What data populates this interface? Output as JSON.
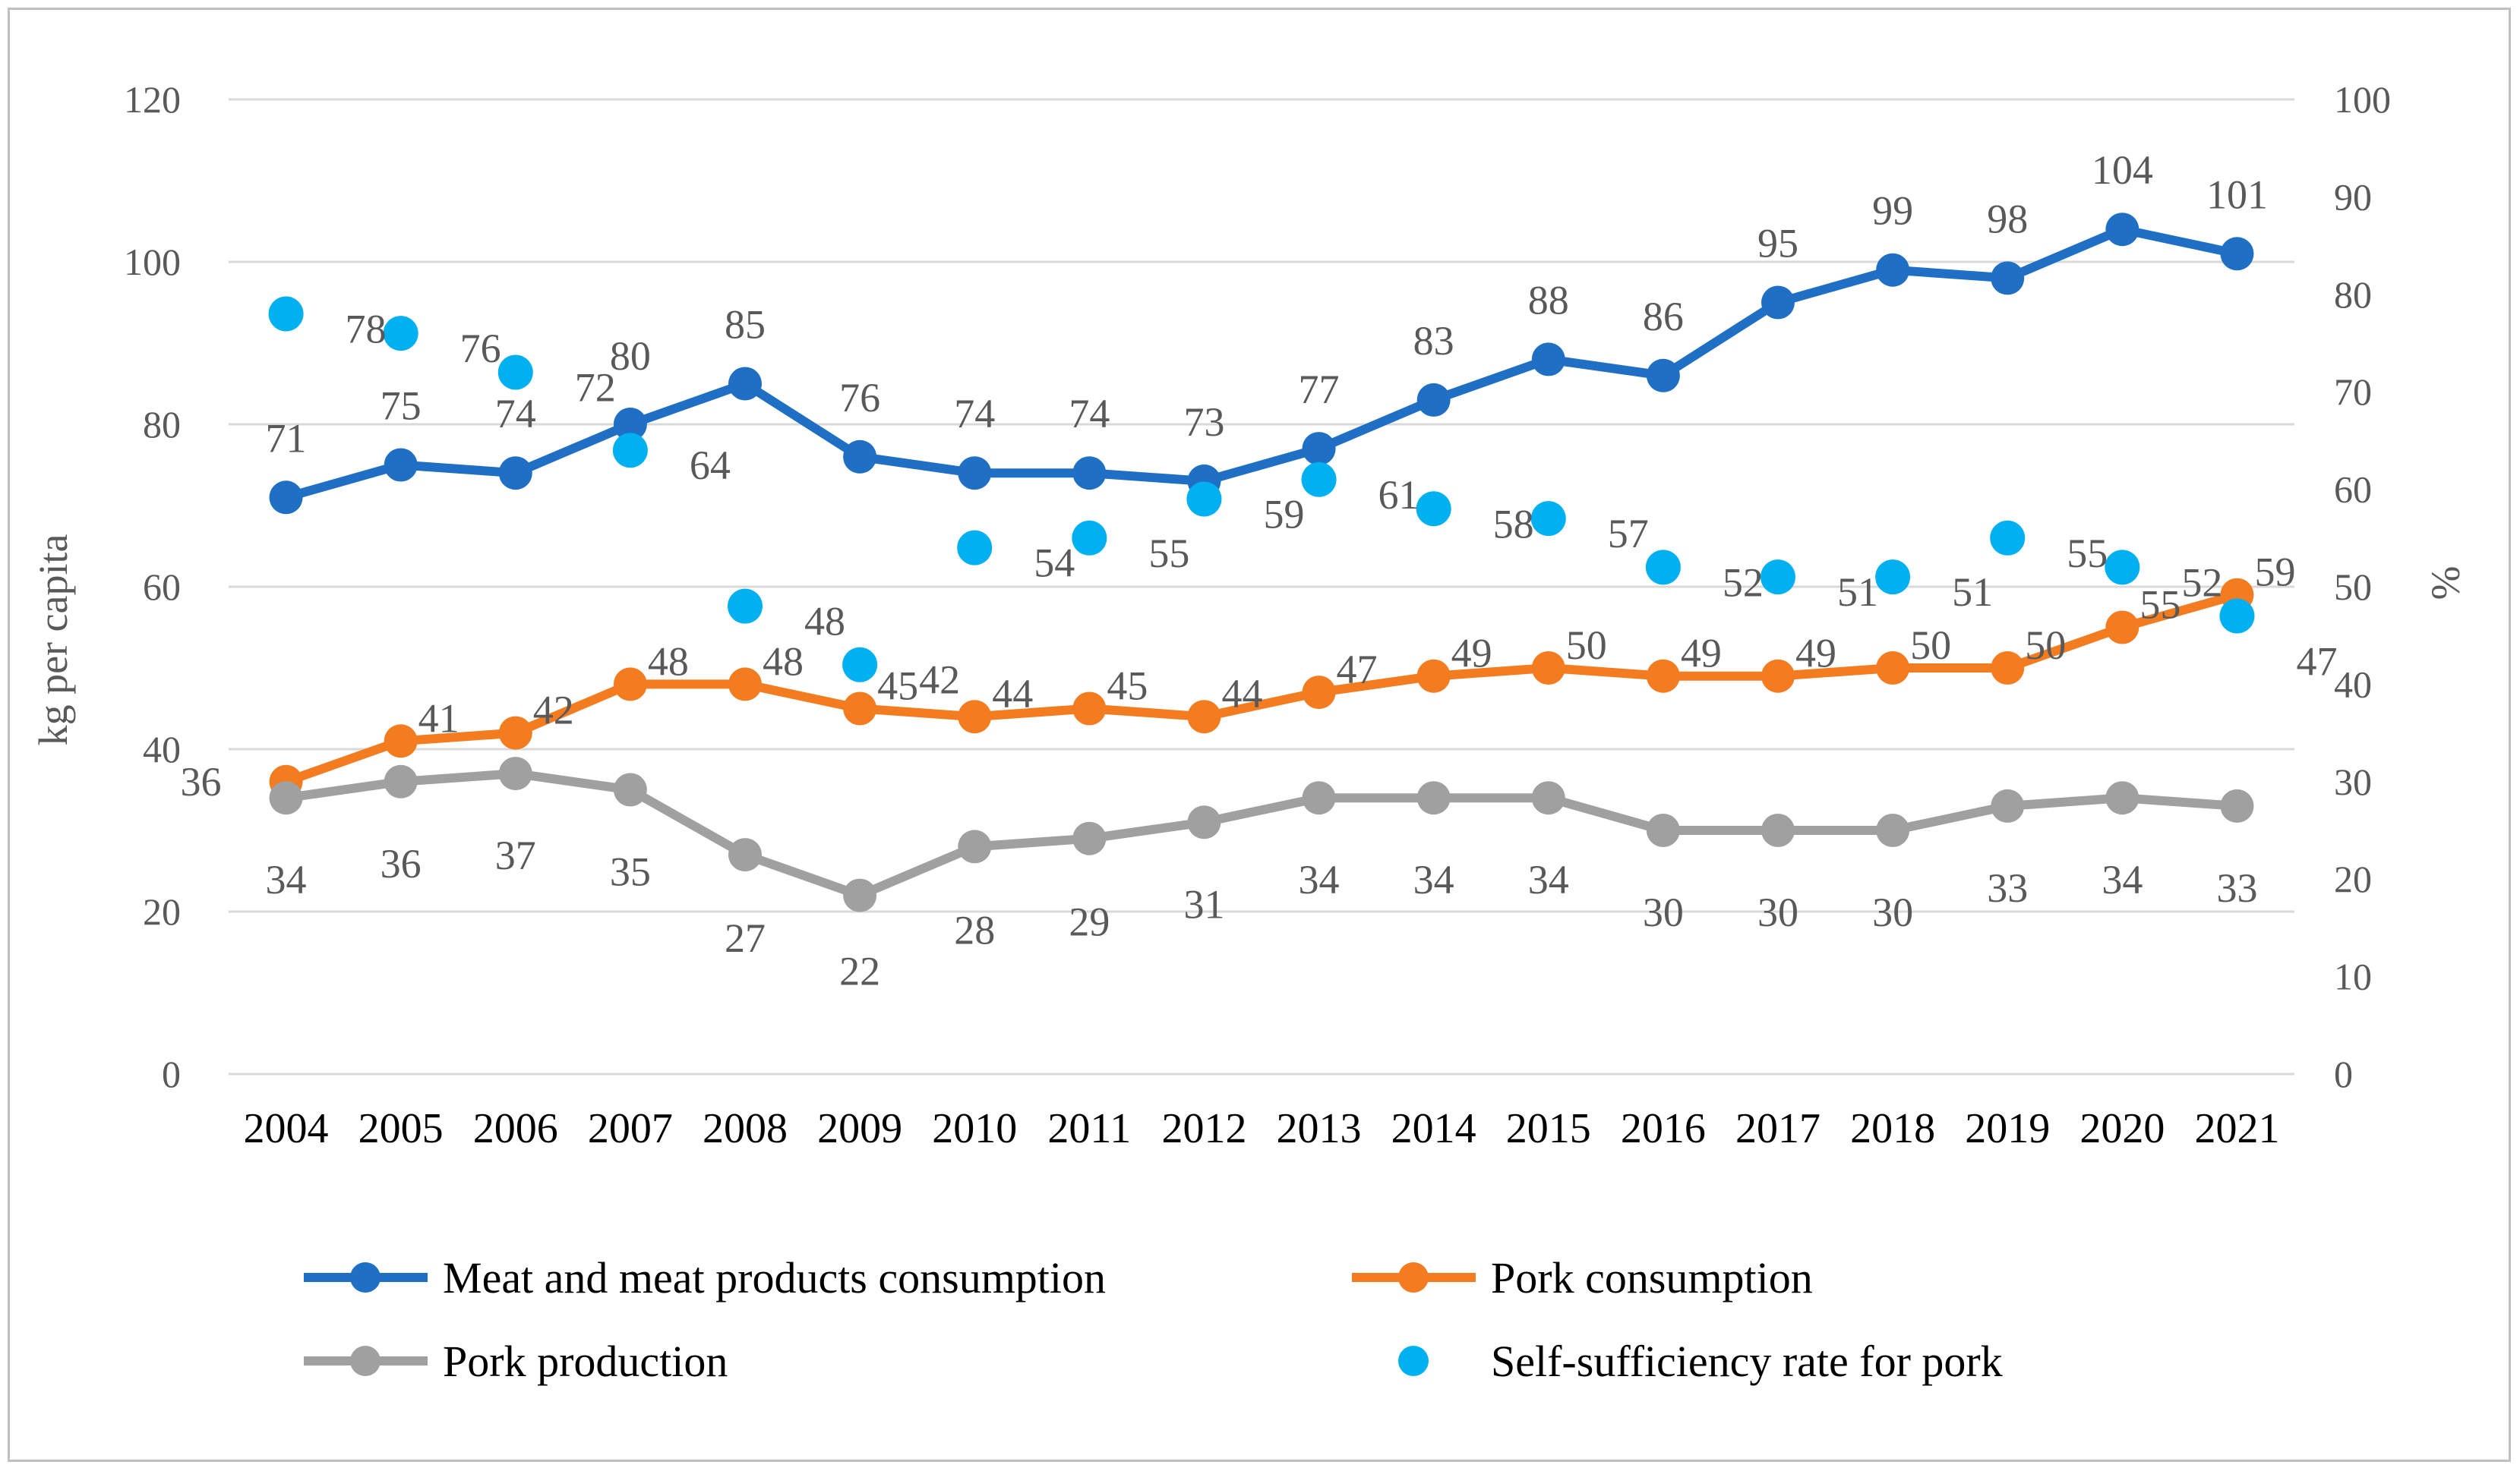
{
  "chart_data": {
    "type": "line",
    "title": "",
    "xlabel": "",
    "ylabel": "kg per capita",
    "y2label": "%",
    "ylim": [
      0,
      120
    ],
    "y2lim": [
      0,
      100
    ],
    "yticks": [
      "0",
      "20",
      "40",
      "60",
      "80",
      "100",
      "120"
    ],
    "y2ticks": [
      "0",
      "10",
      "20",
      "30",
      "40",
      "50",
      "60",
      "70",
      "80",
      "90",
      "100"
    ],
    "categories": [
      "2004",
      "2005",
      "2006",
      "2007",
      "2008",
      "2009",
      "2010",
      "2011",
      "2012",
      "2013",
      "2014",
      "2015",
      "2016",
      "2017",
      "2018",
      "2019",
      "2020",
      "2021"
    ],
    "grid": true,
    "legend_position": "bottom",
    "series": [
      {
        "name": "Meat and meat products consumption",
        "axis": "left",
        "style": "line",
        "color": "#1f6fc5",
        "values": [
          71,
          75,
          74,
          80,
          85,
          76,
          74,
          74,
          73,
          77,
          83,
          88,
          86,
          95,
          99,
          98,
          104,
          101
        ]
      },
      {
        "name": "Pork consumption",
        "axis": "left",
        "style": "line",
        "color": "#f47c20",
        "values": [
          36,
          41,
          42,
          48,
          48,
          45,
          44,
          45,
          44,
          47,
          49,
          50,
          49,
          49,
          50,
          50,
          55,
          59
        ]
      },
      {
        "name": "Pork production",
        "axis": "left",
        "style": "line",
        "color": "#a0a0a0",
        "values": [
          34,
          36,
          37,
          35,
          27,
          22,
          28,
          29,
          31,
          34,
          34,
          34,
          30,
          30,
          30,
          33,
          34,
          33
        ]
      },
      {
        "name": "Self-sufficiency rate for pork",
        "axis": "right",
        "style": "markers",
        "color": "#00b0f0",
        "values": [
          78,
          76,
          72,
          64,
          48,
          42,
          54,
          55,
          59,
          61,
          58,
          57,
          52,
          51,
          51,
          55,
          52,
          47
        ]
      }
    ]
  }
}
